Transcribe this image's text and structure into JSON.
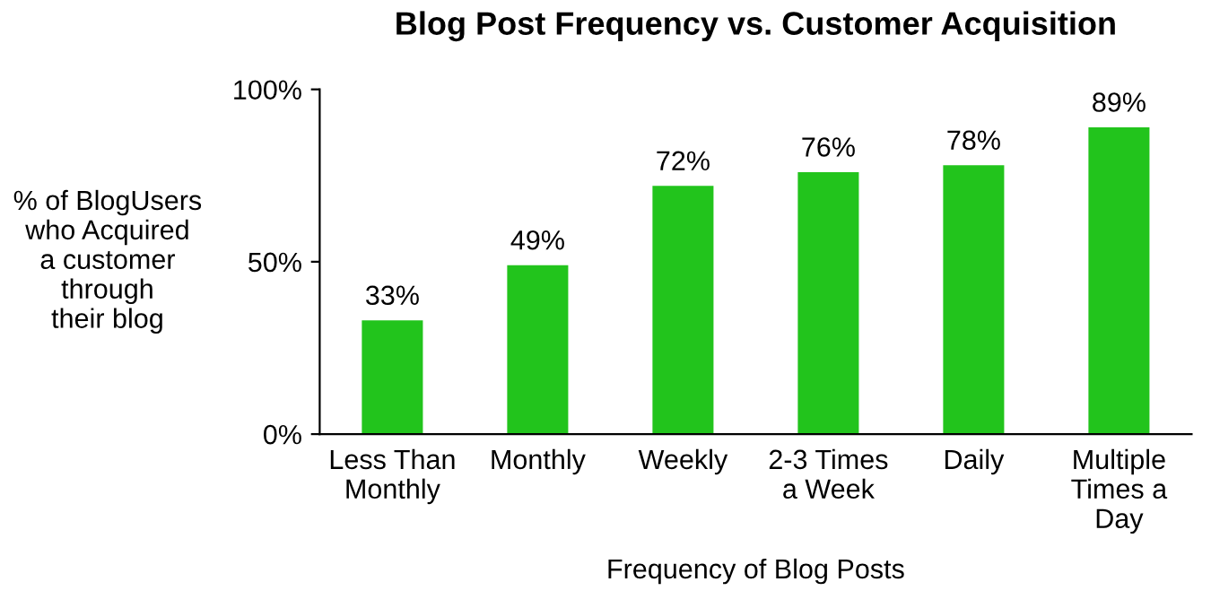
{
  "chart_data": {
    "type": "bar",
    "title": "Blog Post Frequency vs. Customer Acquisition",
    "xlabel": "Frequency of Blog Posts",
    "ylabel": "% of BlogUsers\nwho Acquired\na customer\nthrough\ntheir blog",
    "categories": [
      "Less Than\nMonthly",
      "Monthly",
      "Weekly",
      "2-3 Times\na Week",
      "Daily",
      "Multiple\nTimes a\nDay"
    ],
    "values": [
      33,
      49,
      72,
      76,
      78,
      89
    ],
    "value_labels": [
      "33%",
      "49%",
      "72%",
      "76%",
      "78%",
      "89%"
    ],
    "color": "#22c41c",
    "ylim": [
      0,
      100
    ],
    "yticks": [
      {
        "value": 0,
        "label": "0%"
      },
      {
        "value": 50,
        "label": "50%"
      },
      {
        "value": 100,
        "label": "100%"
      }
    ],
    "grid": false,
    "legend": false
  }
}
